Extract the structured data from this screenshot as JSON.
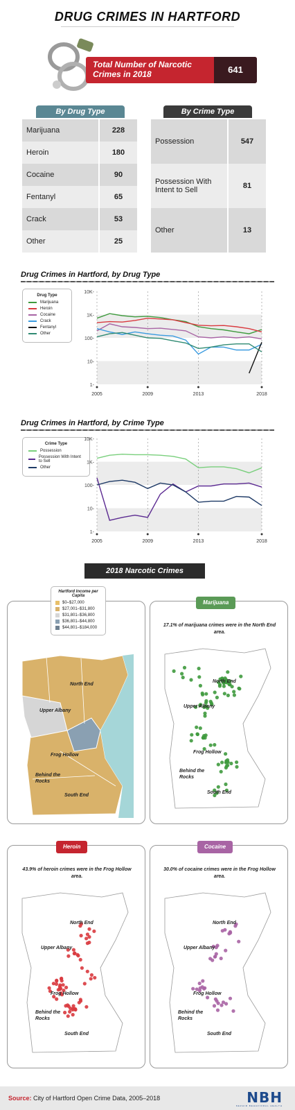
{
  "title": "DRUG CRIMES IN HARTFORD",
  "total": {
    "label": "Total Number of Narcotic Crimes in 2018",
    "value": "641"
  },
  "drug_table": {
    "header": "By Drug Type",
    "rows": [
      {
        "label": "Marijuana",
        "value": "228"
      },
      {
        "label": "Heroin",
        "value": "180"
      },
      {
        "label": "Cocaine",
        "value": "90"
      },
      {
        "label": "Fentanyl",
        "value": "65"
      },
      {
        "label": "Crack",
        "value": "53"
      },
      {
        "label": "Other",
        "value": "25"
      }
    ]
  },
  "crime_table": {
    "header": "By Crime Type",
    "rows": [
      {
        "label": "Possession",
        "value": "547"
      },
      {
        "label": "Possession With Intent to Sell",
        "value": "81"
      },
      {
        "label": "Other",
        "value": "13"
      }
    ]
  },
  "colors": {
    "red": "#c5252f",
    "teal": "#5a8793",
    "dark": "#3a3a3a",
    "marijuana": "#3f9a3e",
    "heroin": "#d93a3f",
    "cocaine": "#a864a4",
    "crack": "#3a9be0",
    "fentanyl": "#111111",
    "other": "#2f8a72",
    "possession": "#79cf7c",
    "pwis": "#5b2a91",
    "crime_other": "#1e3a66",
    "map_gold": "#d9b26a",
    "map_gray": "#d6d6d6",
    "map_blue": "#8aa0b2",
    "map_river": "#a5d6d8"
  },
  "section1": {
    "title": "Drug Crimes in Hartford, by Drug Type",
    "legend_title": "Drug Type",
    "legend": [
      "Marijuana",
      "Heroin",
      "Cocaine",
      "Crack",
      "Fentanyl",
      "Other"
    ]
  },
  "section2": {
    "title": "Drug Crimes in Hartford, by Crime Type",
    "legend_title": "Crime Type",
    "legend": [
      "Possession",
      "Possession With Intent to Sell",
      "Other"
    ]
  },
  "chart_data": [
    {
      "type": "line",
      "title": "Drug Crimes in Hartford, by Drug Type",
      "x": [
        2005,
        2006,
        2007,
        2008,
        2009,
        2010,
        2011,
        2012,
        2013,
        2014,
        2015,
        2016,
        2017,
        2018
      ],
      "x_ticks": [
        "2005",
        "2009",
        "2013",
        "2018"
      ],
      "y_scale": "log",
      "y_ticks": [
        "1-",
        "10-",
        "100-",
        "1K-",
        "10K-"
      ],
      "ylim": [
        1,
        10000
      ],
      "series": [
        {
          "name": "Marijuana",
          "values": [
            700,
            1100,
            900,
            800,
            850,
            750,
            600,
            500,
            300,
            250,
            220,
            180,
            150,
            228
          ]
        },
        {
          "name": "Heroin",
          "values": [
            450,
            500,
            480,
            560,
            700,
            650,
            600,
            450,
            350,
            330,
            340,
            300,
            250,
            180
          ]
        },
        {
          "name": "Cocaine",
          "values": [
            200,
            400,
            300,
            280,
            250,
            260,
            230,
            200,
            110,
            100,
            110,
            100,
            110,
            90
          ]
        },
        {
          "name": "Crack",
          "values": [
            250,
            180,
            140,
            180,
            150,
            130,
            120,
            80,
            20,
            40,
            40,
            30,
            30,
            53
          ]
        },
        {
          "name": "Fentanyl",
          "values": [
            null,
            null,
            null,
            null,
            null,
            null,
            null,
            null,
            null,
            null,
            null,
            null,
            3,
            65
          ]
        },
        {
          "name": "Other",
          "values": [
            110,
            150,
            170,
            130,
            100,
            95,
            75,
            60,
            35,
            40,
            50,
            55,
            55,
            25
          ]
        }
      ]
    },
    {
      "type": "line",
      "title": "Drug Crimes in Hartford, by Crime Type",
      "x": [
        2005,
        2006,
        2007,
        2008,
        2009,
        2010,
        2011,
        2012,
        2013,
        2014,
        2015,
        2016,
        2017,
        2018
      ],
      "x_ticks": [
        "2005",
        "2009",
        "2013",
        "2018"
      ],
      "y_scale": "log",
      "y_ticks": [
        "1-",
        "10-",
        "100-",
        "1K-",
        "10K-"
      ],
      "ylim": [
        1,
        10000
      ],
      "series": [
        {
          "name": "Possession",
          "values": [
            1400,
            1900,
            2100,
            2000,
            2000,
            1900,
            1700,
            1300,
            550,
            600,
            600,
            500,
            330,
            547
          ]
        },
        {
          "name": "Possession With Intent to Sell",
          "values": [
            200,
            3,
            4,
            5,
            4,
            40,
            110,
            50,
            90,
            90,
            110,
            110,
            120,
            81
          ]
        },
        {
          "name": "Other",
          "values": [
            100,
            140,
            160,
            130,
            70,
            120,
            100,
            50,
            18,
            20,
            20,
            32,
            30,
            13
          ]
        }
      ]
    }
  ],
  "banner": "2018 Narcotic Crimes",
  "income_legend": {
    "title": "Hartford Income per Capita",
    "items": [
      "$0–$27,000",
      "$27,001–$31,800",
      "$31,801–$36,800",
      "$36,801–$44,800",
      "$44,801–$184,000"
    ]
  },
  "maps": {
    "marijuana": {
      "tag": "Marijuana",
      "caption": "17.1% of marijuana crimes were in the North End area."
    },
    "heroin": {
      "tag": "Heroin",
      "caption": "43.9% of heroin crimes were in the Frog Hollow area."
    },
    "cocaine": {
      "tag": "Cocaine",
      "caption": "30.0% of cocaine crimes were in the Frog Hollow area."
    }
  },
  "neighborhoods": [
    "North End",
    "Upper Albany",
    "Frog Hollow",
    "Behind the Rocks",
    "South End"
  ],
  "footer": {
    "source_label": "Source:",
    "source_text": "City of Hartford Open Crime Data, 2005–2018",
    "logo": "NBH",
    "logo_sub": "NEZHIR BEHAVIORAL HEALTH"
  }
}
